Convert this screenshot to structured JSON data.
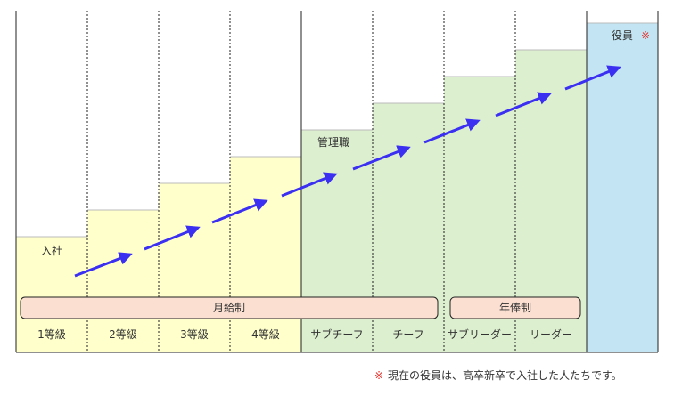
{
  "levels": [
    {
      "label": "1等級",
      "group": "monthly"
    },
    {
      "label": "2等級",
      "group": "monthly"
    },
    {
      "label": "3等級",
      "group": "monthly"
    },
    {
      "label": "4等級",
      "group": "monthly"
    },
    {
      "label": "サブチーフ",
      "group": "manager"
    },
    {
      "label": "チーフ",
      "group": "manager"
    },
    {
      "label": "サブリーダー",
      "group": "manager"
    },
    {
      "label": "リーダー",
      "group": "manager"
    },
    {
      "label": "",
      "group": "executive"
    }
  ],
  "annotations": {
    "entry": "入社",
    "management": "管理職",
    "executive": "役員",
    "executive_mark": "※"
  },
  "salary_bands": {
    "monthly": "月給制",
    "annual": "年俸制"
  },
  "footnote": {
    "mark": "※",
    "text": "現在の役員は、高卒新卒で入社した人たちです。"
  },
  "colors": {
    "monthly_fill": "#ffffcc",
    "manager_fill": "#dcefcf",
    "executive_fill": "#c2e4f3",
    "band_fill": "#fbe0d2",
    "arrow": "#3b2ff2",
    "mark": "#e8302a"
  }
}
